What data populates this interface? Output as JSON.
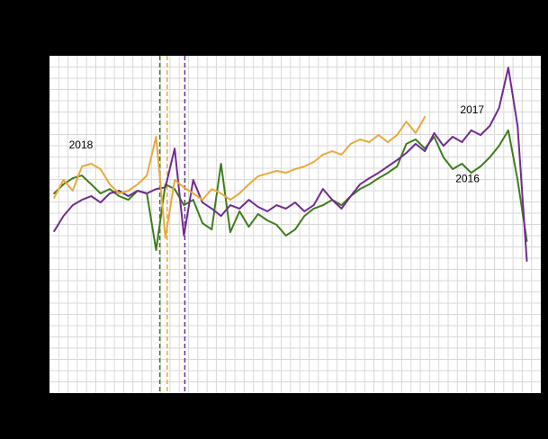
{
  "figure": {
    "background_color": "#000000",
    "plot_background_color": "#ffffff",
    "gridline_color": "#d9d9d9"
  },
  "chart_data": {
    "type": "line",
    "x_unit": "week",
    "x_range": [
      1,
      53
    ],
    "ylim": [
      0,
      100
    ],
    "grid": true,
    "legend_position": "inline-labels",
    "series": [
      {
        "name": "2016",
        "color": "#3e7d1c",
        "values": [
          59.2,
          61.9,
          63.7,
          64.5,
          61.9,
          59.2,
          60.5,
          58.4,
          57.3,
          60.0,
          59.2,
          42.4,
          61.9,
          60.5,
          55.7,
          57.3,
          50.4,
          48.5,
          68.0,
          47.7,
          53.9,
          49.3,
          53.1,
          51.2,
          49.9,
          46.7,
          48.5,
          52.5,
          54.7,
          55.7,
          57.3,
          55.7,
          58.4,
          60.5,
          61.9,
          63.7,
          65.3,
          67.2,
          73.9,
          75.2,
          72.5,
          76.0,
          69.9,
          66.4,
          68.0,
          65.3,
          67.2,
          69.9,
          73.3,
          77.9,
          63.2,
          45.1
        ]
      },
      {
        "name": "2017",
        "color": "#6f2c91",
        "values": [
          48.0,
          52.5,
          55.7,
          57.3,
          58.4,
          56.5,
          59.2,
          60.0,
          58.4,
          60.0,
          59.2,
          60.5,
          61.0,
          72.5,
          46.7,
          63.2,
          56.5,
          54.7,
          52.5,
          55.7,
          54.7,
          57.3,
          55.2,
          53.9,
          55.7,
          54.7,
          56.5,
          53.9,
          55.7,
          60.5,
          57.3,
          54.7,
          58.4,
          61.9,
          63.7,
          65.3,
          67.2,
          69.1,
          71.2,
          73.9,
          71.7,
          77.1,
          73.3,
          76.0,
          74.4,
          77.9,
          76.5,
          79.2,
          84.5,
          96.5,
          79.2,
          39.2
        ]
      },
      {
        "name": "2018",
        "color": "#e9a93d",
        "values": [
          57.9,
          63.2,
          60.0,
          67.2,
          68.0,
          66.4,
          61.9,
          59.2,
          60.0,
          61.9,
          64.5,
          76.0,
          46.0,
          63.2,
          61.0,
          59.2,
          57.3,
          60.5,
          59.2,
          57.3,
          59.2,
          61.9,
          64.3,
          65.1,
          65.9,
          65.3,
          66.4,
          67.2,
          68.5,
          70.7,
          71.7,
          70.7,
          73.9,
          75.2,
          74.4,
          76.5,
          74.4,
          76.5,
          80.5,
          77.1,
          81.9
        ]
      }
    ],
    "vertical_markers": [
      {
        "series": "2016",
        "week": 12.4,
        "color": "#3e7d1c",
        "style": "dashed"
      },
      {
        "series": "2018",
        "week": 13.2,
        "color": "#e9a93d",
        "style": "dashed"
      },
      {
        "series": "2017",
        "week": 15.1,
        "color": "#6f2c91",
        "style": "dashed"
      }
    ],
    "annotations": [
      {
        "text": "2018",
        "week": 2.6,
        "value": 72.5
      },
      {
        "text": "2017",
        "week": 44.8,
        "value": 83.0
      },
      {
        "text": "2016",
        "week": 44.3,
        "value": 62.5
      }
    ]
  }
}
